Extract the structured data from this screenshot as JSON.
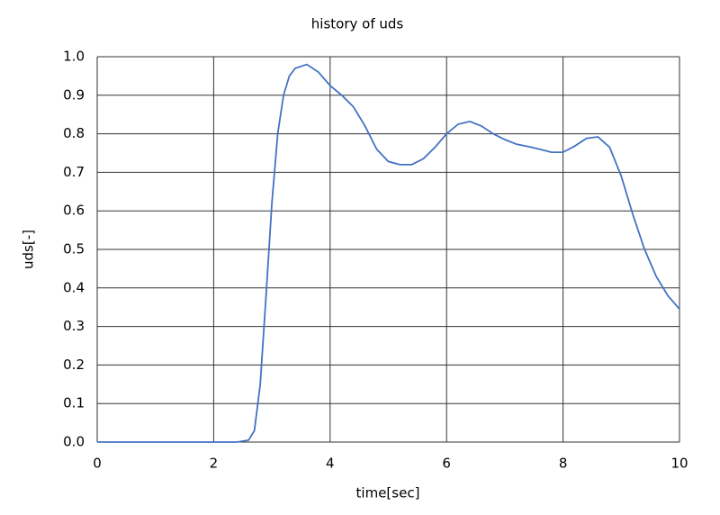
{
  "chart_data": {
    "type": "line",
    "title": "history of uds",
    "x_label": "time[sec]",
    "y_label": "uds[-]",
    "x": [
      0,
      2.4,
      2.6,
      2.7,
      2.8,
      2.9,
      3.0,
      3.1,
      3.2,
      3.3,
      3.4,
      3.6,
      3.8,
      4.0,
      4.2,
      4.4,
      4.6,
      4.8,
      5.0,
      5.2,
      5.4,
      5.6,
      5.8,
      6.0,
      6.2,
      6.4,
      6.6,
      6.8,
      7.0,
      7.2,
      7.4,
      7.6,
      7.8,
      8.0,
      8.2,
      8.4,
      8.6,
      8.8,
      9.0,
      9.2,
      9.4,
      9.6,
      9.8,
      10
    ],
    "series": [
      {
        "color": "#4472c4",
        "values": [
          0,
          0,
          0.005,
          0.03,
          0.15,
          0.38,
          0.62,
          0.8,
          0.9,
          0.95,
          0.97,
          0.98,
          0.96,
          0.925,
          0.9,
          0.87,
          0.82,
          0.76,
          0.728,
          0.72,
          0.72,
          0.735,
          0.765,
          0.8,
          0.825,
          0.832,
          0.82,
          0.8,
          0.785,
          0.773,
          0.767,
          0.76,
          0.752,
          0.752,
          0.768,
          0.788,
          0.792,
          0.765,
          0.69,
          0.59,
          0.5,
          0.43,
          0.38,
          0.345
        ]
      }
    ],
    "xlim": [
      0,
      10
    ],
    "xticks": [
      0,
      2,
      4,
      6,
      8,
      10
    ],
    "ylim": [
      0,
      1
    ],
    "yticks": [
      {
        "value": 0,
        "label": "0.0"
      },
      0.1,
      0.2,
      0.3,
      0.4,
      0.5,
      0.6,
      0.7,
      0.8,
      0.9,
      {
        "value": 1,
        "label": "1.0"
      }
    ],
    "grid": true
  }
}
